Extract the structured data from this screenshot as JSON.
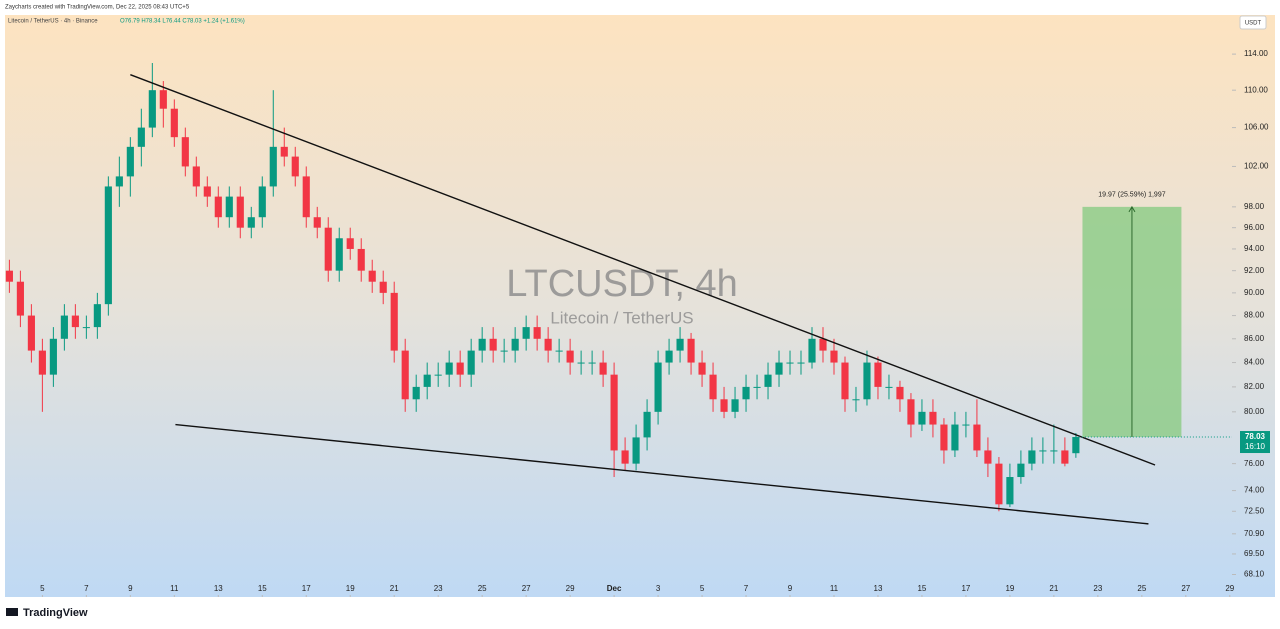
{
  "header": {
    "credit": "Zaycharts created with TradingView.com, Dec 22, 2025 08:43 UTC+5",
    "symbol": "Litecoin / TetherUS · 4h · Binance",
    "ohlc": "O76.79  H78.34  L76.44  C78.03  +1.24 (+1.61%)",
    "currency": "USDT",
    "brand": "TradingView"
  },
  "chart_data": {
    "type": "candlestick",
    "watermark": "LTCUSDT, 4h",
    "watermark_sub": "Litecoin / TetherUS",
    "log_scale": true,
    "up_color": "#089981",
    "down_color": "#f23645",
    "xlim": [
      3.3,
      59.1
    ],
    "ylim": [
      66.6,
      118.5
    ],
    "xticks": [
      5,
      7,
      9,
      11,
      13,
      15,
      17,
      19,
      21,
      23,
      25,
      27,
      29,
      {
        "value": 31,
        "label": "Dec",
        "bold": true
      },
      {
        "value": 33,
        "label": "3"
      },
      {
        "value": 35,
        "label": "5"
      },
      {
        "value": 37,
        "label": "7"
      },
      {
        "value": 39,
        "label": "9"
      },
      {
        "value": 41,
        "label": "11"
      },
      {
        "value": 43,
        "label": "13"
      },
      {
        "value": 45,
        "label": "15"
      },
      {
        "value": 47,
        "label": "17"
      },
      {
        "value": 49,
        "label": "19"
      },
      {
        "value": 51,
        "label": "21"
      },
      {
        "value": 53,
        "label": "23"
      },
      {
        "value": 55,
        "label": "25"
      },
      {
        "value": 57,
        "label": "27"
      },
      {
        "value": 59,
        "label": "29"
      }
    ],
    "yticks": [
      {
        "value": 114,
        "label": "114.00"
      },
      {
        "value": 110,
        "label": "110.00"
      },
      {
        "value": 106,
        "label": "106.00"
      },
      {
        "value": 102,
        "label": "102.00"
      },
      {
        "value": 98,
        "label": "98.00"
      },
      {
        "value": 96,
        "label": "96.00"
      },
      {
        "value": 94,
        "label": "94.00"
      },
      {
        "value": 92,
        "label": "92.00"
      },
      {
        "value": 90,
        "label": "90.00"
      },
      {
        "value": 88,
        "label": "88.00"
      },
      {
        "value": 86,
        "label": "86.00"
      },
      {
        "value": 84,
        "label": "84.00"
      },
      {
        "value": 82,
        "label": "82.00"
      },
      {
        "value": 80,
        "label": "80.00"
      },
      {
        "value": 76,
        "label": "76.00"
      },
      {
        "value": 74,
        "label": "74.00"
      },
      {
        "value": 72.5,
        "label": "72.50"
      },
      {
        "value": 70.9,
        "label": "70.90"
      },
      {
        "value": 69.5,
        "label": "69.50"
      },
      {
        "value": 68.1,
        "label": "68.10"
      }
    ],
    "candles": [
      {
        "x": 3.5,
        "open": 92,
        "high": 93,
        "low": 90,
        "close": 91
      },
      {
        "x": 4,
        "open": 91,
        "high": 92,
        "low": 87,
        "close": 88
      },
      {
        "x": 4.5,
        "open": 88,
        "high": 89,
        "low": 84,
        "close": 85
      },
      {
        "x": 5,
        "open": 85,
        "high": 86,
        "low": 80,
        "close": 83
      },
      {
        "x": 5.5,
        "open": 83,
        "high": 87,
        "low": 82,
        "close": 86
      },
      {
        "x": 6,
        "open": 86,
        "high": 89,
        "low": 85,
        "close": 88
      },
      {
        "x": 6.5,
        "open": 88,
        "high": 89,
        "low": 86,
        "close": 87
      },
      {
        "x": 7,
        "open": 87,
        "high": 88,
        "low": 86,
        "close": 87
      },
      {
        "x": 7.5,
        "open": 87,
        "high": 90,
        "low": 86,
        "close": 89
      },
      {
        "x": 8,
        "open": 89,
        "high": 101,
        "low": 88,
        "close": 100
      },
      {
        "x": 8.5,
        "open": 100,
        "high": 103,
        "low": 98,
        "close": 101
      },
      {
        "x": 9,
        "open": 101,
        "high": 105,
        "low": 99,
        "close": 104
      },
      {
        "x": 9.5,
        "open": 104,
        "high": 108,
        "low": 102,
        "close": 106
      },
      {
        "x": 10,
        "open": 106,
        "high": 113,
        "low": 105,
        "close": 110
      },
      {
        "x": 10.5,
        "open": 110,
        "high": 111,
        "low": 106,
        "close": 108
      },
      {
        "x": 11,
        "open": 108,
        "high": 109,
        "low": 104,
        "close": 105
      },
      {
        "x": 11.5,
        "open": 105,
        "high": 106,
        "low": 101,
        "close": 102
      },
      {
        "x": 12,
        "open": 102,
        "high": 103,
        "low": 99,
        "close": 100
      },
      {
        "x": 12.5,
        "open": 100,
        "high": 101,
        "low": 98,
        "close": 99
      },
      {
        "x": 13,
        "open": 99,
        "high": 100,
        "low": 96,
        "close": 97
      },
      {
        "x": 13.5,
        "open": 97,
        "high": 100,
        "low": 96,
        "close": 99
      },
      {
        "x": 14,
        "open": 99,
        "high": 100,
        "low": 95,
        "close": 96
      },
      {
        "x": 14.5,
        "open": 96,
        "high": 98,
        "low": 95,
        "close": 97
      },
      {
        "x": 15,
        "open": 97,
        "high": 101,
        "low": 96,
        "close": 100
      },
      {
        "x": 15.5,
        "open": 100,
        "high": 110,
        "low": 99,
        "close": 104
      },
      {
        "x": 16,
        "open": 104,
        "high": 106,
        "low": 102,
        "close": 103
      },
      {
        "x": 16.5,
        "open": 103,
        "high": 104,
        "low": 100,
        "close": 101
      },
      {
        "x": 17,
        "open": 101,
        "high": 102,
        "low": 96,
        "close": 97
      },
      {
        "x": 17.5,
        "open": 97,
        "high": 98,
        "low": 95,
        "close": 96
      },
      {
        "x": 18,
        "open": 96,
        "high": 97,
        "low": 91,
        "close": 92
      },
      {
        "x": 18.5,
        "open": 92,
        "high": 96,
        "low": 91,
        "close": 95
      },
      {
        "x": 19,
        "open": 95,
        "high": 96,
        "low": 93,
        "close": 94
      },
      {
        "x": 19.5,
        "open": 94,
        "high": 95,
        "low": 91,
        "close": 92
      },
      {
        "x": 20,
        "open": 92,
        "high": 93,
        "low": 90,
        "close": 91
      },
      {
        "x": 20.5,
        "open": 91,
        "high": 92,
        "low": 89,
        "close": 90
      },
      {
        "x": 21,
        "open": 90,
        "high": 91,
        "low": 84,
        "close": 85
      },
      {
        "x": 21.5,
        "open": 85,
        "high": 86,
        "low": 80,
        "close": 81
      },
      {
        "x": 22,
        "open": 81,
        "high": 83,
        "low": 80,
        "close": 82
      },
      {
        "x": 22.5,
        "open": 82,
        "high": 84,
        "low": 81,
        "close": 83
      },
      {
        "x": 23,
        "open": 83,
        "high": 84,
        "low": 82,
        "close": 83
      },
      {
        "x": 23.5,
        "open": 83,
        "high": 85,
        "low": 82,
        "close": 84
      },
      {
        "x": 24,
        "open": 84,
        "high": 85,
        "low": 82,
        "close": 83
      },
      {
        "x": 24.5,
        "open": 83,
        "high": 86,
        "low": 82,
        "close": 85
      },
      {
        "x": 25,
        "open": 85,
        "high": 87,
        "low": 84,
        "close": 86
      },
      {
        "x": 25.5,
        "open": 86,
        "high": 87,
        "low": 84,
        "close": 85
      },
      {
        "x": 26,
        "open": 85,
        "high": 86,
        "low": 84,
        "close": 85
      },
      {
        "x": 26.5,
        "open": 85,
        "high": 87,
        "low": 84,
        "close": 86
      },
      {
        "x": 27,
        "open": 86,
        "high": 88,
        "low": 85,
        "close": 87
      },
      {
        "x": 27.5,
        "open": 87,
        "high": 88,
        "low": 85,
        "close": 86
      },
      {
        "x": 28,
        "open": 86,
        "high": 87,
        "low": 84,
        "close": 85
      },
      {
        "x": 28.5,
        "open": 85,
        "high": 86,
        "low": 84,
        "close": 85
      },
      {
        "x": 29,
        "open": 85,
        "high": 86,
        "low": 83,
        "close": 84
      },
      {
        "x": 29.5,
        "open": 84,
        "high": 85,
        "low": 83,
        "close": 84
      },
      {
        "x": 30,
        "open": 84,
        "high": 85,
        "low": 83,
        "close": 84
      },
      {
        "x": 30.5,
        "open": 84,
        "high": 85,
        "low": 82,
        "close": 83
      },
      {
        "x": 31,
        "open": 83,
        "high": 84,
        "low": 75,
        "close": 77
      },
      {
        "x": 31.5,
        "open": 77,
        "high": 78,
        "low": 75.5,
        "close": 76
      },
      {
        "x": 32,
        "open": 76,
        "high": 79,
        "low": 75.5,
        "close": 78
      },
      {
        "x": 32.5,
        "open": 78,
        "high": 81,
        "low": 77,
        "close": 80
      },
      {
        "x": 33,
        "open": 80,
        "high": 85,
        "low": 79,
        "close": 84
      },
      {
        "x": 33.5,
        "open": 84,
        "high": 86,
        "low": 83,
        "close": 85
      },
      {
        "x": 34,
        "open": 85,
        "high": 87,
        "low": 84,
        "close": 86
      },
      {
        "x": 34.5,
        "open": 86,
        "high": 86.5,
        "low": 83,
        "close": 84
      },
      {
        "x": 35,
        "open": 84,
        "high": 85,
        "low": 82,
        "close": 83
      },
      {
        "x": 35.5,
        "open": 83,
        "high": 84,
        "low": 80,
        "close": 81
      },
      {
        "x": 36,
        "open": 81,
        "high": 82,
        "low": 79.5,
        "close": 80
      },
      {
        "x": 36.5,
        "open": 80,
        "high": 82,
        "low": 79.5,
        "close": 81
      },
      {
        "x": 37,
        "open": 81,
        "high": 83,
        "low": 80,
        "close": 82
      },
      {
        "x": 37.5,
        "open": 82,
        "high": 83,
        "low": 81,
        "close": 82
      },
      {
        "x": 38,
        "open": 82,
        "high": 84,
        "low": 81,
        "close": 83
      },
      {
        "x": 38.5,
        "open": 83,
        "high": 85,
        "low": 82,
        "close": 84
      },
      {
        "x": 39,
        "open": 84,
        "high": 85,
        "low": 83,
        "close": 84
      },
      {
        "x": 39.5,
        "open": 84,
        "high": 85,
        "low": 83,
        "close": 84
      },
      {
        "x": 40,
        "open": 84,
        "high": 87,
        "low": 83.5,
        "close": 86
      },
      {
        "x": 40.5,
        "open": 86,
        "high": 87,
        "low": 84,
        "close": 85
      },
      {
        "x": 41,
        "open": 85,
        "high": 86,
        "low": 83,
        "close": 84
      },
      {
        "x": 41.5,
        "open": 84,
        "high": 84.5,
        "low": 80,
        "close": 81
      },
      {
        "x": 42,
        "open": 81,
        "high": 82,
        "low": 80,
        "close": 81
      },
      {
        "x": 42.5,
        "open": 81,
        "high": 85,
        "low": 80.5,
        "close": 84
      },
      {
        "x": 43,
        "open": 84,
        "high": 84.5,
        "low": 81,
        "close": 82
      },
      {
        "x": 43.5,
        "open": 82,
        "high": 83,
        "low": 81,
        "close": 82
      },
      {
        "x": 44,
        "open": 82,
        "high": 82.5,
        "low": 80,
        "close": 81
      },
      {
        "x": 44.5,
        "open": 81,
        "high": 81.5,
        "low": 78,
        "close": 79
      },
      {
        "x": 45,
        "open": 79,
        "high": 81,
        "low": 78.5,
        "close": 80
      },
      {
        "x": 45.5,
        "open": 80,
        "high": 81,
        "low": 78,
        "close": 79
      },
      {
        "x": 46,
        "open": 79,
        "high": 79.5,
        "low": 76,
        "close": 77
      },
      {
        "x": 46.5,
        "open": 77,
        "high": 80,
        "low": 76.5,
        "close": 79
      },
      {
        "x": 47,
        "open": 79,
        "high": 80,
        "low": 78,
        "close": 79
      },
      {
        "x": 47.5,
        "open": 79,
        "high": 81,
        "low": 76.5,
        "close": 77
      },
      {
        "x": 48,
        "open": 77,
        "high": 78,
        "low": 75,
        "close": 76
      },
      {
        "x": 48.5,
        "open": 76,
        "high": 76.5,
        "low": 72.5,
        "close": 73
      },
      {
        "x": 49,
        "open": 73,
        "high": 76,
        "low": 72.8,
        "close": 75
      },
      {
        "x": 49.5,
        "open": 75,
        "high": 77,
        "low": 74.5,
        "close": 76
      },
      {
        "x": 50,
        "open": 76,
        "high": 78,
        "low": 75.5,
        "close": 77
      },
      {
        "x": 50.5,
        "open": 77,
        "high": 78,
        "low": 76,
        "close": 77
      },
      {
        "x": 51,
        "open": 77,
        "high": 79,
        "low": 76,
        "close": 77
      },
      {
        "x": 51.5,
        "open": 77,
        "high": 78,
        "low": 75.8,
        "close": 76
      },
      {
        "x": 52,
        "open": 76.79,
        "high": 78.34,
        "low": 76.44,
        "close": 78.03
      }
    ],
    "trendlines": [
      {
        "x": [
          9,
          55.6
        ],
        "y": [
          111.7,
          75.9
        ]
      },
      {
        "x": [
          11.05,
          55.3
        ],
        "y": [
          79.0,
          71.6
        ]
      }
    ],
    "measure": {
      "x": [
        52.3,
        56.8
      ],
      "y": [
        78.03,
        98
      ],
      "label": "19.97 (25.59%) 1,997",
      "color": "#8fcc8a"
    },
    "last_price": 78.03,
    "countdown": "16:10"
  }
}
